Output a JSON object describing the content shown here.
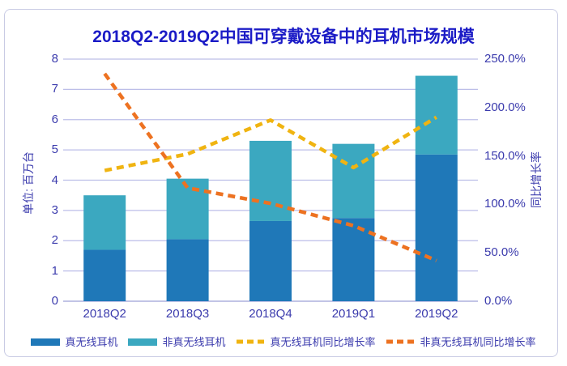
{
  "title": "2018Q2-2019Q2中国可穿戴设备中的耳机市场规模",
  "left_axis": {
    "label": "单位: 百万台",
    "min": 0,
    "max": 8,
    "step": 1,
    "ticks": [
      "8",
      "7",
      "6",
      "5",
      "4",
      "3",
      "2",
      "1",
      "0"
    ]
  },
  "right_axis": {
    "label": "同比增长率",
    "min": 0,
    "max": 250,
    "step": 50,
    "ticks": [
      "250.0%",
      "200.0%",
      "150.0%",
      "100.0%",
      "50.0%",
      "0.0%"
    ]
  },
  "legend": {
    "items": [
      {
        "label": "真无线耳机",
        "swatch": "bar",
        "color": "#1F78B8"
      },
      {
        "label": "非真无线耳机",
        "swatch": "bar",
        "color": "#3BA8C0"
      },
      {
        "label": "真无线耳机同比增长率",
        "swatch": "dashed-line",
        "color": "#F0B411"
      },
      {
        "label": "非真无线耳机同比增长率",
        "swatch": "dashed-line",
        "color": "#ED7221"
      }
    ]
  },
  "chart_data": {
    "type": "combo-stacked-bar-line",
    "title": "2018Q2-2019Q2中国可穿戴设备中的耳机市场规模",
    "categories": [
      "2018Q2",
      "2018Q3",
      "2018Q4",
      "2019Q1",
      "2019Q2"
    ],
    "series": [
      {
        "name": "真无线耳机",
        "type": "bar",
        "axis": "left",
        "color": "#1F78B8",
        "values": [
          1.7,
          2.05,
          2.65,
          2.75,
          4.85
        ]
      },
      {
        "name": "非真无线耳机",
        "type": "bar",
        "axis": "left",
        "color": "#3BA8C0",
        "values": [
          1.8,
          2.0,
          2.65,
          2.45,
          2.6
        ]
      },
      {
        "name": "真无线耳机同比增长率",
        "type": "line",
        "dashed": true,
        "axis": "right",
        "color": "#F0B411",
        "values": [
          135,
          152,
          187,
          138,
          190
        ]
      },
      {
        "name": "非真无线耳机同比增长率",
        "type": "line",
        "dashed": true,
        "axis": "right",
        "color": "#ED7221",
        "values": [
          235,
          117,
          101,
          78,
          42
        ]
      }
    ],
    "stacked_bar_totals": [
      3.5,
      4.05,
      5.3,
      5.2,
      7.45
    ],
    "ylabel_left": "单位: 百万台",
    "ylabel_right": "同比增长率",
    "ylim_left": [
      0,
      8
    ],
    "ylim_right": [
      0,
      250
    ],
    "grid": true,
    "legend_position": "bottom"
  },
  "colors": {
    "tws_bar": "#1F78B8",
    "non_tws_bar": "#3BA8C0",
    "tws_growth_line": "#F0B411",
    "non_tws_growth_line": "#ED7221",
    "gridline": "#BCBEE8",
    "axis_line": "#AEB1DE",
    "axis_text": "#3B3BAD",
    "title_text": "#1B1BC6",
    "card_border": "#C9CBE4",
    "background": "#FFFFFF"
  }
}
